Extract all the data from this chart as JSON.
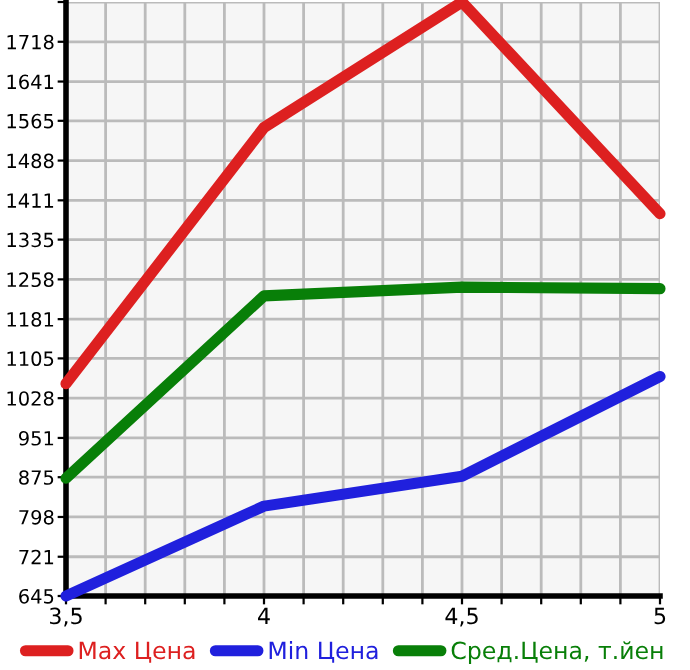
{
  "chart_data": {
    "type": "line",
    "x": [
      3.5,
      4,
      4.5,
      5
    ],
    "series": [
      {
        "name": "Max Цена",
        "color": "#dd2020",
        "values": [
          1056,
          1552,
          1795,
          1385
        ]
      },
      {
        "name": "Min Цена",
        "color": "#2020dd",
        "values": [
          645,
          819,
          877,
          1070
        ]
      },
      {
        "name": "Сред.Цена, т.йен",
        "color": "#087f08",
        "values": [
          873,
          1226,
          1243,
          1240
        ]
      }
    ],
    "xlim": [
      3.5,
      5
    ],
    "xticks": [
      {
        "value": 3.5,
        "label": "3,5"
      },
      {
        "value": 3.6,
        "label": null
      },
      {
        "value": 3.7,
        "label": null
      },
      {
        "value": 3.8,
        "label": null
      },
      {
        "value": 3.9,
        "label": null
      },
      {
        "value": 4,
        "label": "4"
      },
      {
        "value": 4.1,
        "label": null
      },
      {
        "value": 4.2,
        "label": null
      },
      {
        "value": 4.3,
        "label": null
      },
      {
        "value": 4.4,
        "label": null
      },
      {
        "value": 4.5,
        "label": "4,5"
      },
      {
        "value": 4.6,
        "label": null
      },
      {
        "value": 4.7,
        "label": null
      },
      {
        "value": 4.8,
        "label": null
      },
      {
        "value": 4.9,
        "label": null
      },
      {
        "value": 5,
        "label": "5"
      }
    ],
    "ylim": [
      645,
      1795
    ],
    "yticks": [
      645,
      721,
      798,
      875,
      951,
      1028,
      1105,
      1181,
      1258,
      1335,
      1411,
      1488,
      1565,
      1641,
      1718,
      {
        "value": 1795,
        "label": null
      }
    ],
    "grid": true,
    "legend": "bottom",
    "marker": "none",
    "line_style": "solid"
  }
}
